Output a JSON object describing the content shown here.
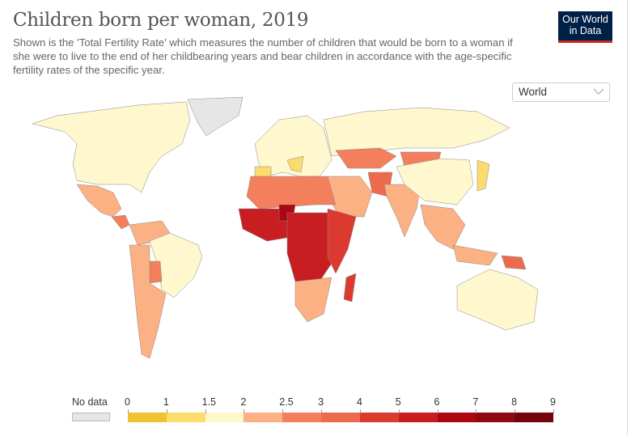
{
  "header": {
    "title": "Children born per woman, 2019",
    "subtitle": "Shown is the 'Total Fertility Rate' which measures the number of children that would be born to a woman if she were to live to the end of her childbearing years and bear children in accordance with the age-specific fertility rates of the specific year.",
    "logo_line1": "Our World",
    "logo_line2": "in Data"
  },
  "region_select": {
    "value": "World"
  },
  "legend": {
    "no_data_label": "No data",
    "no_data_color": "#e6e6e6",
    "ticks": [
      "0",
      "1",
      "1.5",
      "2",
      "2.5",
      "3",
      "4",
      "5",
      "6",
      "7",
      "8",
      "9"
    ],
    "bins": [
      {
        "from": 0,
        "to": 1,
        "color": "#f1c232"
      },
      {
        "from": 1,
        "to": 1.5,
        "color": "#fbdc6c"
      },
      {
        "from": 1.5,
        "to": 2,
        "color": "#fff7cd"
      },
      {
        "from": 2,
        "to": 2.5,
        "color": "#fbb183"
      },
      {
        "from": 2.5,
        "to": 3,
        "color": "#f37f5d"
      },
      {
        "from": 3,
        "to": 4,
        "color": "#ec6a4e"
      },
      {
        "from": 4,
        "to": 5,
        "color": "#dc3a31"
      },
      {
        "from": 5,
        "to": 6,
        "color": "#c81e22"
      },
      {
        "from": 6,
        "to": 7,
        "color": "#ad0811"
      },
      {
        "from": 7,
        "to": 8,
        "color": "#900812"
      },
      {
        "from": 8,
        "to": 9,
        "color": "#72020b"
      }
    ]
  },
  "chart_data": {
    "type": "choropleth",
    "title": "Children born per woman, 2019",
    "regions": [
      {
        "name": "North America",
        "bin": "1.5-2"
      },
      {
        "name": "Greenland",
        "bin": "No data"
      },
      {
        "name": "Mexico",
        "bin": "2-2.5"
      },
      {
        "name": "Central America",
        "bin": "2.5-3"
      },
      {
        "name": "South America North",
        "bin": "2-2.5"
      },
      {
        "name": "Brazil",
        "bin": "1.5-2"
      },
      {
        "name": "Bolivia",
        "bin": "2.5-3"
      },
      {
        "name": "Southern Cone",
        "bin": "2-2.5"
      },
      {
        "name": "Europe",
        "bin": "1.5-2"
      },
      {
        "name": "Spain/Italy",
        "bin": "1-1.5"
      },
      {
        "name": "Russia",
        "bin": "1.5-2"
      },
      {
        "name": "Central Asia",
        "bin": "2.5-3"
      },
      {
        "name": "Middle East",
        "bin": "2-2.5"
      },
      {
        "name": "Afghanistan/Pakistan",
        "bin": "3-4"
      },
      {
        "name": "India",
        "bin": "2-2.5"
      },
      {
        "name": "China",
        "bin": "1.5-2"
      },
      {
        "name": "Japan/Korea",
        "bin": "1-1.5"
      },
      {
        "name": "Southeast Asia",
        "bin": "2-2.5"
      },
      {
        "name": "North Africa",
        "bin": "2.5-3"
      },
      {
        "name": "West Africa",
        "bin": "5-6"
      },
      {
        "name": "Niger",
        "bin": "6-7"
      },
      {
        "name": "Central Africa",
        "bin": "5-6"
      },
      {
        "name": "East Africa",
        "bin": "4-5"
      },
      {
        "name": "Southern Africa",
        "bin": "2-2.5"
      },
      {
        "name": "Madagascar",
        "bin": "4-5"
      },
      {
        "name": "Australia",
        "bin": "1.5-2"
      },
      {
        "name": "Papua New Guinea",
        "bin": "3-4"
      }
    ]
  }
}
